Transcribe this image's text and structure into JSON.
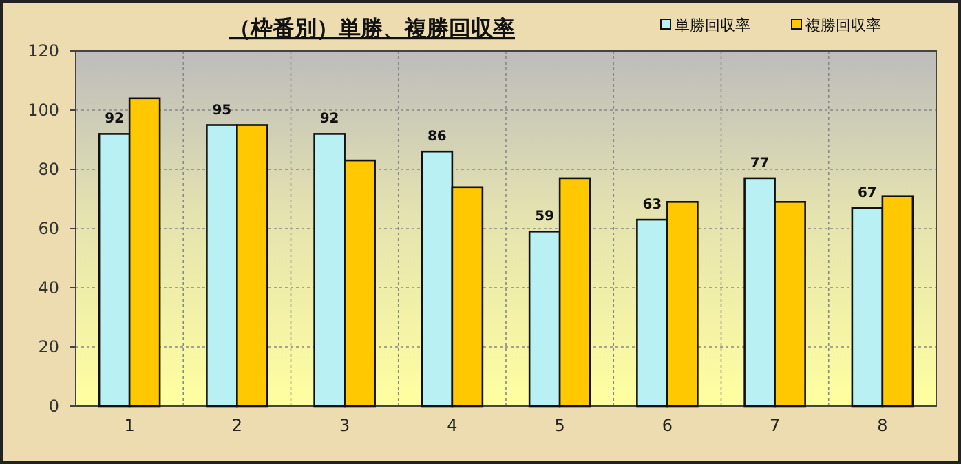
{
  "chart_data": {
    "type": "bar",
    "title": "（枠番別）単勝、複勝回収率",
    "categories": [
      "1",
      "2",
      "3",
      "4",
      "5",
      "6",
      "7",
      "8"
    ],
    "series": [
      {
        "name": "単勝回収率",
        "color": "#b8f0f4",
        "values": [
          92,
          95,
          92,
          86,
          59,
          63,
          77,
          67
        ],
        "value_labels": [
          "92",
          "95",
          "92",
          "86",
          "59",
          "63",
          "77",
          "67"
        ]
      },
      {
        "name": "複勝回収率",
        "color": "#ffc800",
        "values": [
          104,
          95,
          83,
          74,
          77,
          69,
          69,
          71
        ]
      }
    ],
    "ylim": [
      0,
      120
    ],
    "yticks": [
      0,
      20,
      40,
      60,
      80,
      100,
      120
    ],
    "grid": true,
    "legend": "top right"
  }
}
